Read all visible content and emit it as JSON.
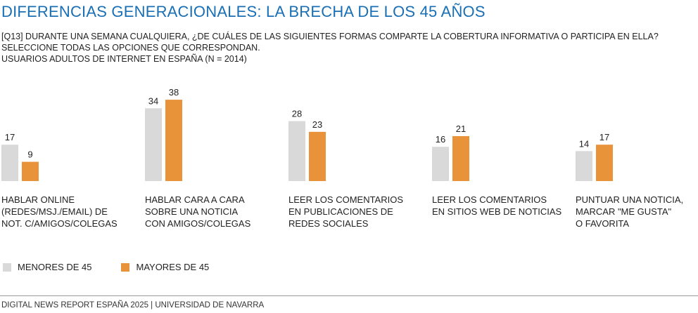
{
  "title": "DIFERENCIAS GENERACIONALES: LA BRECHA DE LOS 45 AÑOS",
  "question": "[Q13] DURANTE UNA SEMANA CUALQUIERA, ¿DE CUÁLES DE LAS SIGUIENTES FORMAS COMPARTE LA COBERTURA INFORMATIVA O PARTICIPA EN ELLA? SELECCIONE TODAS LAS OPCIONES QUE CORRESPONDAN.",
  "sample": "USUARIOS ADULTOS DE INTERNET EN ESPAÑA (N = 2014)",
  "colors": {
    "menores": "#d9d9d9",
    "mayores": "#e8923a"
  },
  "chart_data": {
    "type": "bar",
    "categories": [
      "HABLAR ONLINE\n(REDES/MSJ./EMAIL) DE\nNOT. C/AMIGOS/COLEGAS",
      "HABLAR CARA A CARA\nSOBRE UNA NOTICIA\nCON AMIGOS/COLEGAS",
      "LEER LOS COMENTARIOS\nEN PUBLICACIONES DE\nREDES SOCIALES",
      "LEER LOS COMENTARIOS\nEN SITIOS WEB DE NOTICIAS",
      "PUNTUAR UNA NOTICIA,\nMARCAR \"ME GUSTA\"\nO FAVORITA"
    ],
    "series": [
      {
        "name": "MENORES DE 45",
        "values": [
          17,
          34,
          28,
          16,
          14
        ]
      },
      {
        "name": "MAYORES DE 45",
        "values": [
          9,
          38,
          23,
          21,
          17
        ]
      }
    ],
    "ylim": [
      0,
      40
    ],
    "grid": false,
    "legend": "bottom-left"
  },
  "footer": "DIGITAL NEWS REPORT ESPAÑA 2025 | UNIVERSIDAD DE NAVARRA"
}
